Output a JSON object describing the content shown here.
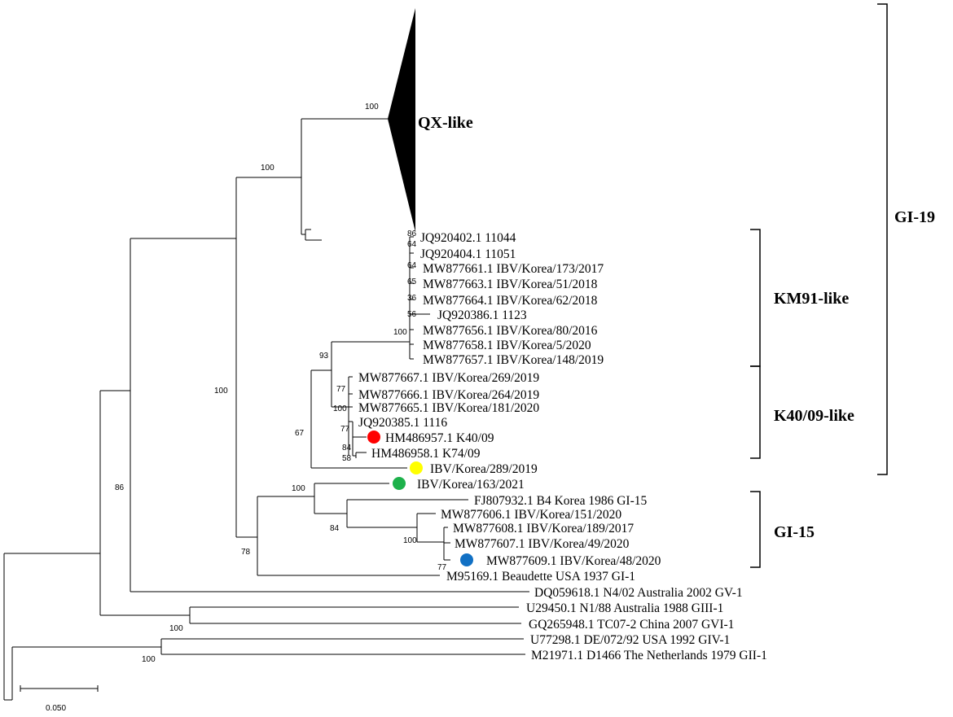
{
  "tree": {
    "tips": [
      {
        "id": "t1",
        "label": "JQ920402.1 11044"
      },
      {
        "id": "t2",
        "label": "JQ920404.1 11051"
      },
      {
        "id": "t3",
        "label": "MW877661.1 IBV/Korea/173/2017"
      },
      {
        "id": "t4",
        "label": "MW877663.1 IBV/Korea/51/2018"
      },
      {
        "id": "t5",
        "label": "MW877664.1 IBV/Korea/62/2018"
      },
      {
        "id": "t6",
        "label": "JQ920386.1 1123"
      },
      {
        "id": "t7",
        "label": "MW877656.1 IBV/Korea/80/2016"
      },
      {
        "id": "t8",
        "label": "MW877658.1 IBV/Korea/5/2020"
      },
      {
        "id": "t9",
        "label": "MW877657.1 IBV/Korea/148/2019"
      },
      {
        "id": "t10",
        "label": "MW877667.1 IBV/Korea/269/2019"
      },
      {
        "id": "t11",
        "label": "MW877666.1 IBV/Korea/264/2019"
      },
      {
        "id": "t12",
        "label": "MW877665.1 IBV/Korea/181/2020"
      },
      {
        "id": "t13",
        "label": "JQ920385.1 1116"
      },
      {
        "id": "t14",
        "label": "HM486957.1 K40/09",
        "marker": "red"
      },
      {
        "id": "t15",
        "label": "HM486958.1 K74/09"
      },
      {
        "id": "t16",
        "label": "IBV/Korea/289/2019",
        "marker": "yellow"
      },
      {
        "id": "t17",
        "label": "IBV/Korea/163/2021",
        "marker": "green"
      },
      {
        "id": "t18",
        "label": "FJ807932.1 B4 Korea 1986 GI-15"
      },
      {
        "id": "t19",
        "label": "MW877606.1 IBV/Korea/151/2020"
      },
      {
        "id": "t20",
        "label": "MW877608.1 IBV/Korea/189/2017"
      },
      {
        "id": "t21",
        "label": "MW877607.1 IBV/Korea/49/2020"
      },
      {
        "id": "t22",
        "label": "MW877609.1 IBV/Korea/48/2020",
        "marker": "blue"
      },
      {
        "id": "t23",
        "label": "M95169.1 Beaudette USA 1937 GI-1"
      },
      {
        "id": "t24",
        "label": "DQ059618.1 N4/02 Australia 2002 GV-1"
      },
      {
        "id": "t25",
        "label": "U29450.1 N1/88 Australia 1988 GIII-1"
      },
      {
        "id": "t26",
        "label": "GQ265948.1 TC07-2 China 2007 GVI-1"
      },
      {
        "id": "t27",
        "label": "U77298.1 DE/072/92 USA 1992 GIV-1"
      },
      {
        "id": "t28",
        "label": "M21971.1 D1466 The Netherlands 1979 GII-1"
      }
    ],
    "collapsed_clade": {
      "label": "QX-like",
      "bootstrap": "100"
    },
    "bootstrap_values": [
      "86",
      "64",
      "64",
      "65",
      "36",
      "56",
      "100",
      "93",
      "77",
      "100",
      "77",
      "84",
      "58",
      "67",
      "100",
      "100",
      "100",
      "84",
      "100",
      "77",
      "78",
      "86",
      "100",
      "100"
    ],
    "groups": [
      "KM91-like",
      "K40/09-like",
      "GI-15",
      "GI-19"
    ],
    "scale_bar": "0.050",
    "marker_colors": {
      "red": "#ff0000",
      "yellow": "#ffff00",
      "green": "#1db14b",
      "blue": "#1170c4"
    }
  }
}
